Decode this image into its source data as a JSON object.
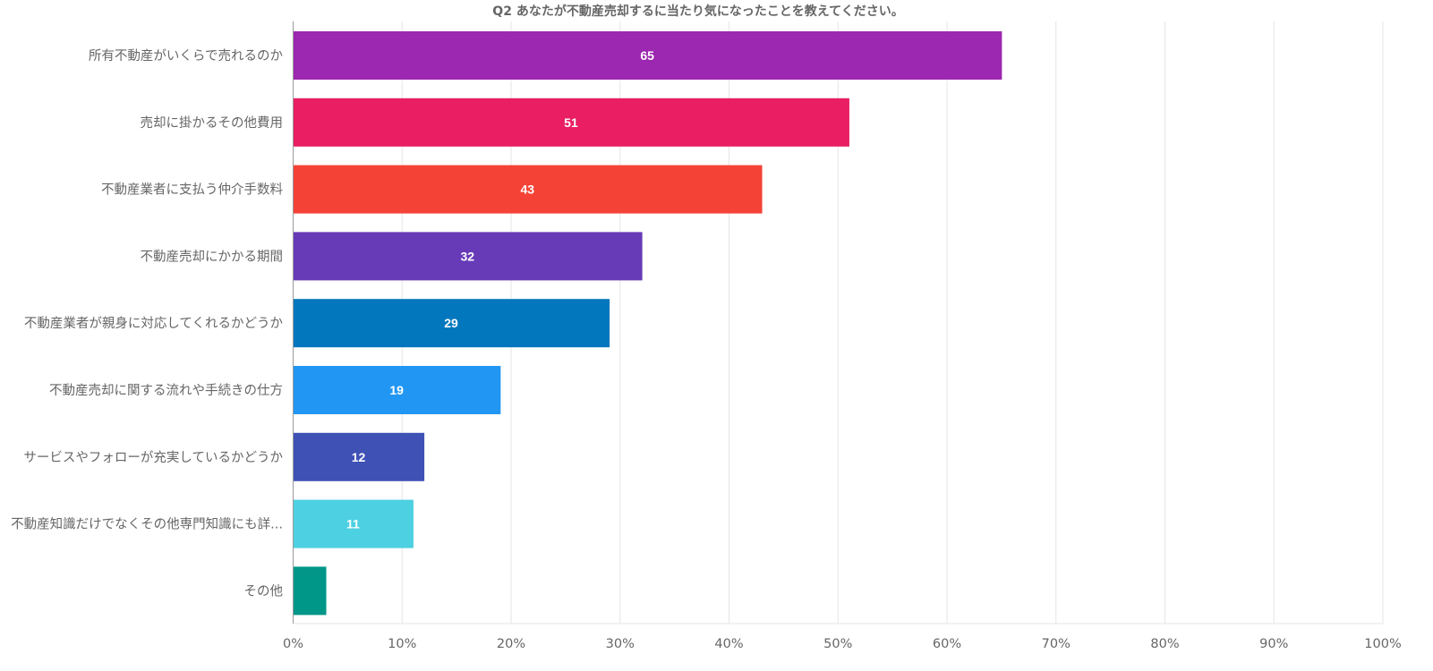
{
  "chart_data": {
    "type": "bar",
    "orientation": "horizontal",
    "title": "Q2 あなたが不動産売却するに当たり気になったことを教えてください。",
    "xlabel": "",
    "ylabel": "",
    "xlim": [
      0,
      100
    ],
    "x_unit": "%",
    "grid": true,
    "legend": "none",
    "ticks": [
      "0%",
      "10%",
      "20%",
      "30%",
      "40%",
      "50%",
      "60%",
      "70%",
      "80%",
      "90%",
      "100%"
    ],
    "categories": [
      "所有不動産がいくらで売れるのか",
      "売却に掛かるその他費用",
      "不動産業者に支払う仲介手数料",
      "不動産売却にかかる期間",
      "不動産業者が親身に対応してくれるかどうか",
      "不動産売却に関する流れや手続きの仕方",
      "サービスやフォローが充実しているかどうか",
      "不動産知識だけでなくその他専門知識にも詳...",
      "その他"
    ],
    "values": [
      65,
      51,
      43,
      32,
      29,
      19,
      12,
      11,
      3
    ],
    "data_labels": [
      "65",
      "51",
      "43",
      "32",
      "29",
      "19",
      "12",
      "11",
      ""
    ],
    "colors": [
      "#9c27b0",
      "#e91e63",
      "#f44336",
      "#673ab7",
      "#0277bd",
      "#2196f3",
      "#3f51b5",
      "#4dd0e1",
      "#009688"
    ]
  }
}
